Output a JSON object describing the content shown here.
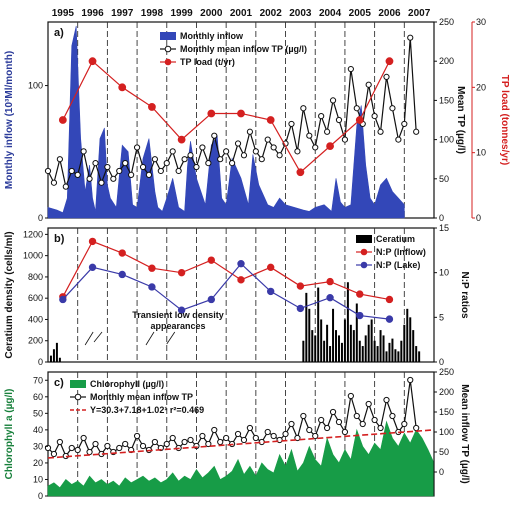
{
  "chart_data": [
    {
      "type": "area",
      "panel_label": "a)",
      "years": [
        "1995",
        "1996",
        "1997",
        "1998",
        "1999",
        "2000",
        "2001",
        "2002",
        "2003",
        "2004",
        "2005",
        "2006",
        "2007"
      ],
      "x_range": [
        1995,
        2008
      ],
      "left_axis": {
        "label": "Monthly inflow (10³Ml/month)",
        "ticks": [
          0,
          100
        ],
        "range": [
          0,
          148
        ],
        "color": "#2b3b9a"
      },
      "right_axis_inner": {
        "label": "Mean TP (µg/l)",
        "ticks": [
          0,
          50,
          100,
          150,
          200,
          250
        ],
        "range": [
          0,
          250
        ]
      },
      "right_axis_outer": {
        "label": "TP load (tonnes/yr)",
        "ticks": [
          0,
          10,
          20,
          30
        ],
        "range": [
          0,
          30
        ],
        "color": "#d42020"
      },
      "legend": [
        "Monthly inflow",
        "Monthly mean inflow TP (µg/l)",
        "TP load (t/yr)"
      ],
      "series": [
        {
          "name": "Monthly inflow",
          "kind": "area",
          "color": "#3347b8",
          "x": [
            1995.0,
            1995.3,
            1995.5,
            1995.65,
            1995.8,
            1995.95,
            1996.1,
            1996.25,
            1996.4,
            1996.5,
            1996.6,
            1996.75,
            1996.9,
            1997.0,
            1997.1,
            1997.3,
            1997.5,
            1997.7,
            1997.85,
            1998.0,
            1998.2,
            1998.4,
            1998.6,
            1998.7,
            1998.85,
            1999.0,
            1999.2,
            1999.4,
            1999.6,
            1999.7,
            1999.8,
            2000.0,
            2000.3,
            2000.5,
            2000.7,
            2000.85,
            2001.0,
            2001.2,
            2001.5,
            2001.75,
            2001.9,
            2002.1,
            2002.4,
            2002.6,
            2002.8,
            2003.0,
            2003.3,
            2003.6,
            2003.8,
            2004.0,
            2004.3,
            2004.55,
            2004.7,
            2004.85,
            2005.0,
            2005.2,
            2005.4,
            2005.55,
            2005.7,
            2005.85,
            2006.0,
            2006.2,
            2006.4,
            2006.6,
            2006.8,
            2007.0
          ],
          "y": [
            8,
            6,
            4,
            15,
            130,
            145,
            60,
            20,
            40,
            15,
            5,
            60,
            68,
            25,
            15,
            8,
            55,
            50,
            10,
            8,
            45,
            60,
            20,
            8,
            5,
            15,
            30,
            8,
            5,
            40,
            58,
            30,
            10,
            55,
            62,
            15,
            10,
            45,
            30,
            10,
            48,
            25,
            10,
            8,
            15,
            10,
            8,
            6,
            5,
            8,
            10,
            5,
            30,
            12,
            8,
            10,
            70,
            85,
            40,
            15,
            10,
            25,
            30,
            20,
            15,
            10
          ]
        },
        {
          "name": "Monthly mean inflow TP (µg/l)",
          "kind": "line-markers",
          "color": "#111",
          "x": [
            1995.0,
            1995.2,
            1995.4,
            1995.6,
            1995.8,
            1996.0,
            1996.2,
            1996.4,
            1996.6,
            1996.8,
            1997.0,
            1997.2,
            1997.4,
            1997.6,
            1997.8,
            1998.0,
            1998.2,
            1998.4,
            1998.6,
            1998.8,
            1999.0,
            1999.2,
            1999.4,
            1999.6,
            1999.8,
            2000.0,
            2000.2,
            2000.4,
            2000.6,
            2000.8,
            2001.0,
            2001.2,
            2001.4,
            2001.6,
            2001.8,
            2002.0,
            2002.2,
            2002.4,
            2002.6,
            2002.8,
            2003.0,
            2003.2,
            2003.4,
            2003.6,
            2003.8,
            2004.0,
            2004.2,
            2004.4,
            2004.6,
            2004.8,
            2005.0,
            2005.2,
            2005.4,
            2005.6,
            2005.8,
            2006.0,
            2006.2,
            2006.4,
            2006.6,
            2006.8,
            2007.0,
            2007.2,
            2007.4
          ],
          "y": [
            60,
            45,
            75,
            40,
            60,
            55,
            85,
            50,
            70,
            45,
            65,
            50,
            60,
            70,
            55,
            90,
            65,
            55,
            75,
            60,
            70,
            85,
            60,
            75,
            80,
            65,
            90,
            70,
            105,
            75,
            85,
            70,
            95,
            80,
            110,
            85,
            75,
            100,
            90,
            80,
            95,
            120,
            85,
            140,
            105,
            90,
            130,
            110,
            150,
            125,
            100,
            190,
            140,
            120,
            170,
            130,
            110,
            180,
            140,
            100,
            120,
            230,
            110
          ]
        },
        {
          "name": "TP load (t/yr)",
          "kind": "line-markers",
          "color": "#d42020",
          "x": [
            1995.5,
            1996.5,
            1997.5,
            1998.5,
            1999.5,
            2000.5,
            2001.5,
            2002.5,
            2003.5,
            2004.5,
            2005.5,
            2006.5
          ],
          "y": [
            15,
            24,
            20,
            17,
            12,
            16,
            16,
            15,
            7,
            11,
            15,
            24
          ]
        }
      ]
    },
    {
      "type": "line",
      "panel_label": "b)",
      "x_range": [
        1995,
        2008
      ],
      "left_axis": {
        "label": "Ceratium density (cells/ml)",
        "ticks": [
          0,
          200,
          400,
          600,
          800,
          1000,
          1200
        ],
        "range": [
          0,
          1260
        ]
      },
      "right_axis": {
        "label": "N:P ratios",
        "ticks": [
          0,
          5,
          10,
          15
        ],
        "range": [
          0,
          15
        ]
      },
      "legend": [
        "Ceratium",
        "N:P (Inflow)",
        "N:P (Lake)"
      ],
      "annotation": "Transient low density\nappearances",
      "series": [
        {
          "name": "Ceratium",
          "kind": "bars",
          "color": "#000",
          "x": [
            1995.1,
            1995.2,
            1995.3,
            1995.4,
            2003.6,
            2003.7,
            2003.8,
            2003.9,
            2004.0,
            2004.1,
            2004.2,
            2004.3,
            2004.4,
            2004.5,
            2004.6,
            2004.7,
            2004.8,
            2004.9,
            2005.0,
            2005.1,
            2005.2,
            2005.3,
            2005.4,
            2005.5,
            2005.6,
            2005.7,
            2005.8,
            2005.9,
            2006.0,
            2006.1,
            2006.2,
            2006.3,
            2006.4,
            2006.5,
            2006.6,
            2006.7,
            2006.8,
            2006.9,
            2007.0,
            2007.1,
            2007.2,
            2007.3,
            2007.4,
            2007.5
          ],
          "y": [
            60,
            120,
            180,
            40,
            200,
            650,
            500,
            300,
            250,
            700,
            400,
            200,
            350,
            150,
            500,
            300,
            250,
            180,
            400,
            750,
            350,
            300,
            550,
            200,
            150,
            250,
            350,
            400,
            200,
            150,
            300,
            250,
            100,
            180,
            220,
            120,
            100,
            200,
            350,
            500,
            420,
            300,
            150,
            100
          ]
        },
        {
          "name": "N:P (Inflow)",
          "kind": "line-markers",
          "color": "#d42020",
          "x": [
            1995.5,
            1996.5,
            1997.5,
            1998.5,
            1999.5,
            2000.5,
            2001.5,
            2002.5,
            2003.5,
            2004.5,
            2005.5,
            2006.5
          ],
          "y": [
            7.3,
            13.5,
            12.2,
            10.5,
            10.0,
            11.4,
            9.2,
            10.6,
            8.5,
            9.0,
            7.6,
            7.0
          ]
        },
        {
          "name": "N:P (Lake)",
          "kind": "line-markers",
          "color": "#3a3aa8",
          "x": [
            1995.5,
            1996.5,
            1997.5,
            1998.5,
            1999.5,
            2000.5,
            2001.5,
            2002.5,
            2003.5,
            2004.5,
            2005.5,
            2006.5
          ],
          "y": [
            7.0,
            10.6,
            9.8,
            8.4,
            5.8,
            7.0,
            11.0,
            7.9,
            6.0,
            7.2,
            5.2,
            4.8
          ]
        }
      ]
    },
    {
      "type": "area",
      "panel_label": "c)",
      "x_range": [
        1995,
        2008
      ],
      "left_axis": {
        "label": "Chlorophyll a (µg/l)",
        "ticks": [
          0,
          10,
          20,
          30,
          40,
          50,
          60,
          70
        ],
        "range": [
          0,
          75
        ],
        "color": "#17803b"
      },
      "right_axis": {
        "label": "Mean inflow TP (µg/l)",
        "ticks": [
          0,
          50,
          100,
          150,
          200,
          250
        ],
        "range": [
          -60,
          250
        ]
      },
      "legend": [
        "Chlorophyll (µg/l)",
        "Monthly mean inflow TP",
        "Y=30.3+7.18+1.02¹ r²=0.469"
      ],
      "series": [
        {
          "name": "Chlorophyll (µg/l)",
          "kind": "area",
          "color": "#179c47",
          "x": [
            1995.0,
            1995.2,
            1995.4,
            1995.6,
            1995.8,
            1996.0,
            1996.2,
            1996.4,
            1996.6,
            1996.8,
            1997.0,
            1997.2,
            1997.4,
            1997.6,
            1997.8,
            1998.0,
            1998.2,
            1998.4,
            1998.6,
            1998.8,
            1999.0,
            1999.2,
            1999.4,
            1999.6,
            1999.8,
            2000.0,
            2000.2,
            2000.4,
            2000.6,
            2000.8,
            2001.0,
            2001.2,
            2001.4,
            2001.6,
            2001.8,
            2002.0,
            2002.2,
            2002.4,
            2002.6,
            2002.8,
            2003.0,
            2003.2,
            2003.4,
            2003.6,
            2003.8,
            2004.0,
            2004.2,
            2004.4,
            2004.6,
            2004.8,
            2005.0,
            2005.2,
            2005.4,
            2005.6,
            2005.8,
            2006.0,
            2006.2,
            2006.4,
            2006.6,
            2006.8,
            2007.0,
            2007.2,
            2007.4,
            2007.6,
            2007.8,
            2008.0
          ],
          "y": [
            6,
            8,
            5,
            10,
            7,
            9,
            6,
            12,
            8,
            10,
            7,
            9,
            6,
            11,
            8,
            10,
            12,
            9,
            11,
            8,
            10,
            14,
            9,
            12,
            10,
            16,
            11,
            14,
            18,
            10,
            12,
            15,
            22,
            13,
            18,
            12,
            20,
            16,
            14,
            25,
            18,
            28,
            15,
            20,
            30,
            22,
            18,
            35,
            25,
            20,
            28,
            22,
            40,
            30,
            25,
            32,
            28,
            45,
            35,
            30,
            38,
            32,
            40,
            35,
            28,
            20
          ]
        },
        {
          "name": "Monthly mean inflow TP",
          "kind": "line-markers",
          "color": "#111",
          "x": [
            1995.0,
            1995.2,
            1995.4,
            1995.6,
            1995.8,
            1996.0,
            1996.2,
            1996.4,
            1996.6,
            1996.8,
            1997.0,
            1997.2,
            1997.4,
            1997.6,
            1997.8,
            1998.0,
            1998.2,
            1998.4,
            1998.6,
            1998.8,
            1999.0,
            1999.2,
            1999.4,
            1999.6,
            1999.8,
            2000.0,
            2000.2,
            2000.4,
            2000.6,
            2000.8,
            2001.0,
            2001.2,
            2001.4,
            2001.6,
            2001.8,
            2002.0,
            2002.2,
            2002.4,
            2002.6,
            2002.8,
            2003.0,
            2003.2,
            2003.4,
            2003.6,
            2003.8,
            2004.0,
            2004.2,
            2004.4,
            2004.6,
            2004.8,
            2005.0,
            2005.2,
            2005.4,
            2005.6,
            2005.8,
            2006.0,
            2006.2,
            2006.4,
            2006.6,
            2006.8,
            2007.0,
            2007.2,
            2007.4
          ],
          "y": [
            60,
            45,
            75,
            40,
            60,
            55,
            85,
            50,
            70,
            45,
            65,
            50,
            60,
            70,
            55,
            90,
            65,
            55,
            75,
            60,
            70,
            85,
            60,
            75,
            80,
            65,
            90,
            70,
            105,
            75,
            85,
            70,
            95,
            80,
            110,
            85,
            75,
            100,
            90,
            80,
            95,
            120,
            85,
            140,
            105,
            90,
            130,
            110,
            150,
            125,
            100,
            190,
            140,
            120,
            170,
            130,
            110,
            180,
            140,
            100,
            120,
            230,
            110
          ]
        },
        {
          "name": "Y=30.3+7.18+1.02¹ r²=0.469",
          "kind": "dashed-line",
          "color": "#d42020",
          "x": [
            1995.0,
            2008.0
          ],
          "y": [
            23,
            40
          ]
        }
      ]
    }
  ]
}
